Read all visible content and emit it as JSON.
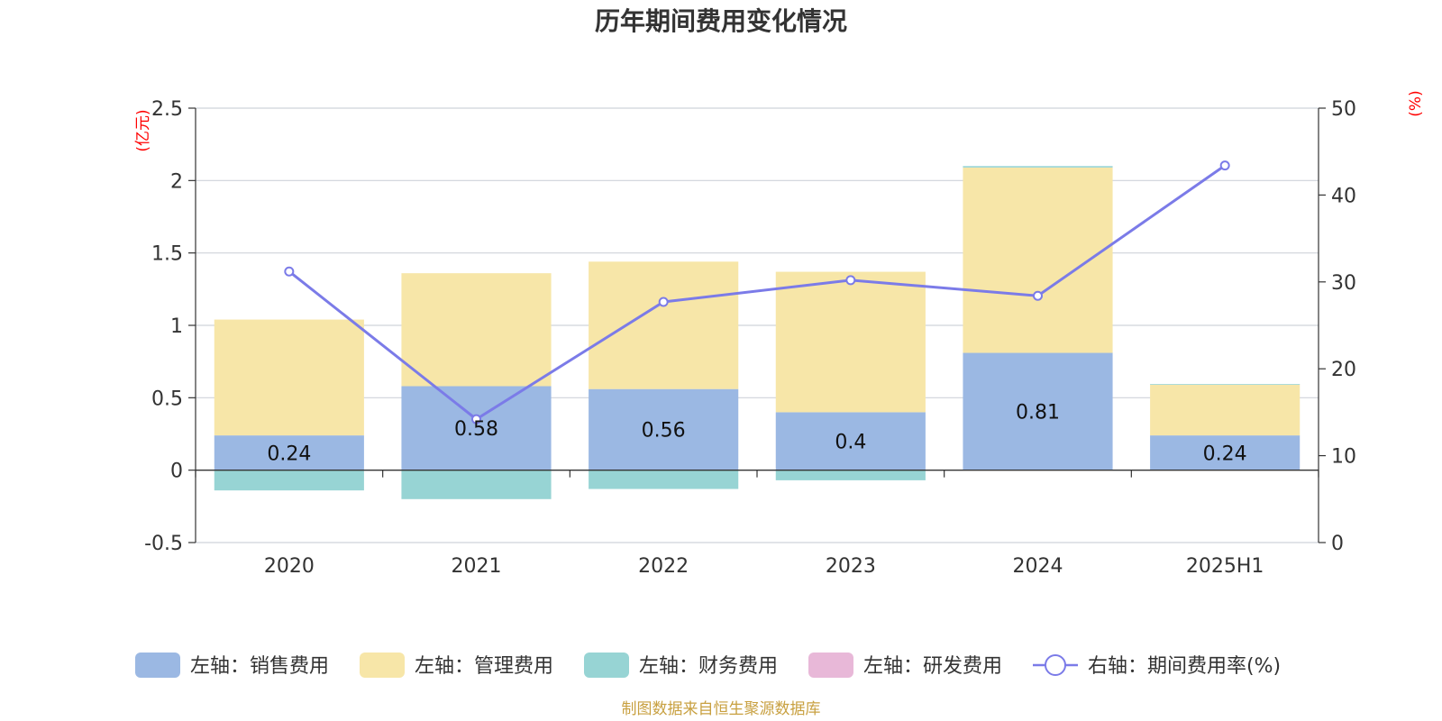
{
  "chart_data": {
    "type": "bar",
    "title": "历年期间费用变化情况",
    "categories": [
      "2020",
      "2021",
      "2022",
      "2023",
      "2024",
      "2025H1"
    ],
    "left_axis": {
      "unit": "(亿元)",
      "ylim": [
        -0.5,
        2.5
      ],
      "ticks": [
        -0.5,
        0,
        0.5,
        1,
        1.5,
        2,
        2.5
      ],
      "tick_labels": [
        "-0.5",
        "0",
        "0.5",
        "1",
        "1.5",
        "2",
        "2.5"
      ]
    },
    "right_axis": {
      "unit": "(%)",
      "ylim": [
        0,
        50
      ],
      "ticks": [
        0,
        10,
        20,
        30,
        40,
        50
      ],
      "tick_labels": [
        "0",
        "10",
        "20",
        "30",
        "40",
        "50"
      ]
    },
    "series": [
      {
        "name": "左轴：销售费用",
        "type": "bar",
        "axis": "left",
        "color": "#9bb8e3",
        "values": [
          0.24,
          0.58,
          0.56,
          0.4,
          0.81,
          0.24
        ],
        "data_labels": [
          "0.24",
          "0.58",
          "0.56",
          "0.4",
          "0.81",
          "0.24"
        ]
      },
      {
        "name": "左轴：管理费用",
        "type": "bar",
        "axis": "left",
        "color": "#f7e6a8",
        "values": [
          0.8,
          0.78,
          0.88,
          0.97,
          1.28,
          0.35
        ]
      },
      {
        "name": "左轴：财务费用",
        "type": "bar",
        "axis": "left",
        "color": "#97d4d4",
        "values": [
          -0.14,
          -0.2,
          -0.13,
          -0.07,
          0.01,
          0.005
        ]
      },
      {
        "name": "左轴：研发费用",
        "type": "bar",
        "axis": "left",
        "color": "#e8b8d8",
        "values": [
          0,
          0,
          0,
          0,
          0,
          0
        ]
      },
      {
        "name": "右轴：期间费用率(%)",
        "type": "line",
        "axis": "right",
        "color": "#7b7be8",
        "values": [
          31.2,
          14.2,
          27.7,
          30.2,
          28.4,
          43.4
        ]
      }
    ],
    "grid": true,
    "legend_position": "bottom",
    "unit_color": "#ff0000",
    "source_text": "制图数据来自恒生聚源数据库",
    "source_color": "#c8a040"
  }
}
